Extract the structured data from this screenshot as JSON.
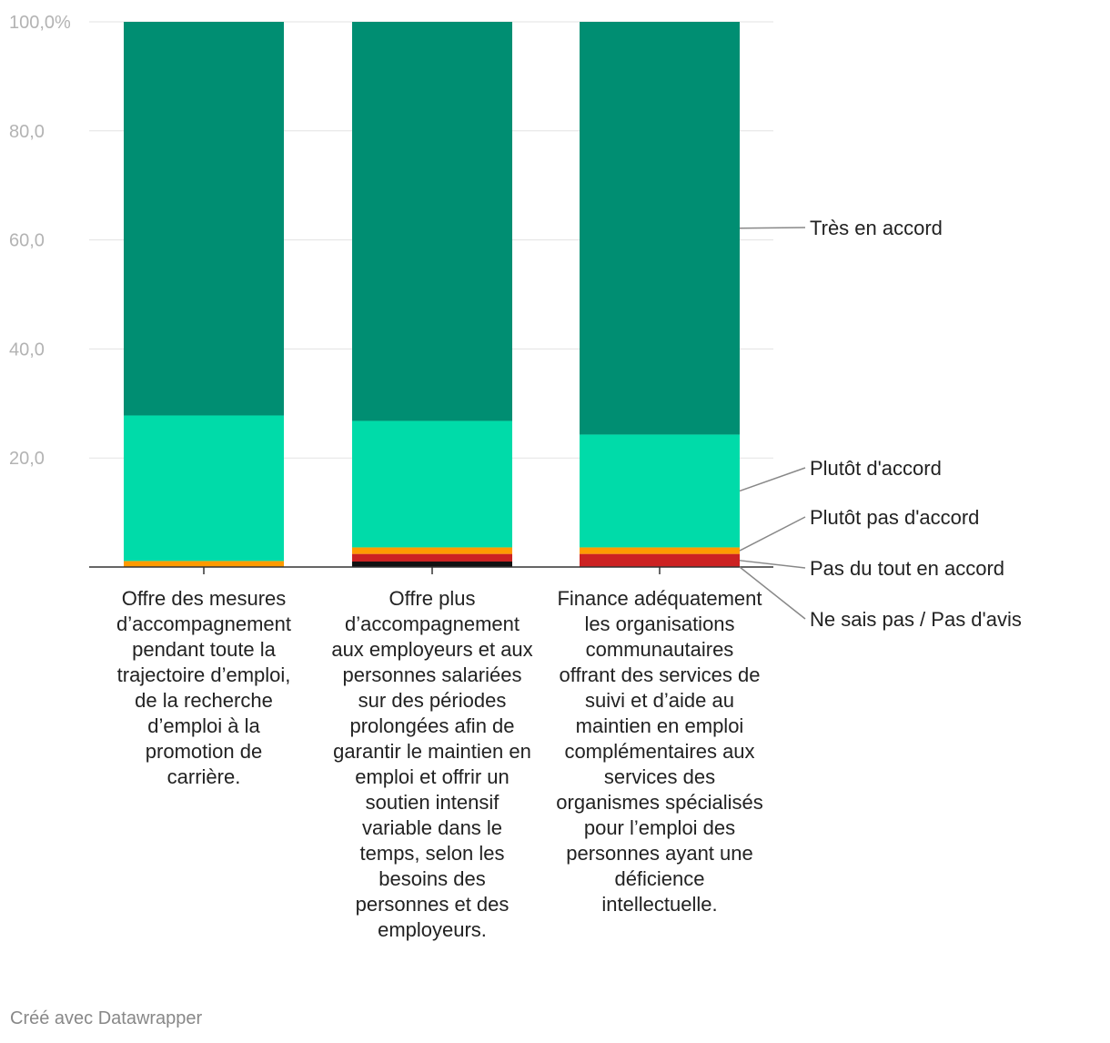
{
  "chart_data": {
    "type": "bar",
    "stacked": true,
    "categories": [
      "Offre des mesures d’accompagnement pendant toute la trajectoire d’emploi, de la recherche d’emploi à la promotion de carrière.",
      "Offre plus d’accompagnement aux employeurs et aux personnes salariées sur des périodes prolongées afin de garantir le maintien en emploi et offrir un soutien intensif variable dans le temps, selon les besoins des personnes et des employeurs.",
      "Finance adéquatement les organisations communautaires offrant des services de suivi et d’aide au maintien en emploi complémentaires aux services des organismes spécialisés pour l’emploi des personnes ayant une déficience intellectuelle."
    ],
    "series": [
      {
        "name": "Ne sais pas / Pas d'avis",
        "color": "#111111",
        "values": [
          0.0,
          1.0,
          0.0
        ]
      },
      {
        "name": "Pas du tout en accord",
        "color": "#cc2222",
        "values": [
          0.0,
          1.4,
          2.4
        ]
      },
      {
        "name": "Plutôt pas d'accord",
        "color": "#ff9a00",
        "values": [
          1.1,
          1.2,
          1.2
        ]
      },
      {
        "name": "Plutôt d'accord",
        "color": "#00dba9",
        "values": [
          26.7,
          23.2,
          20.7
        ]
      },
      {
        "name": "Très en accord",
        "color": "#008e72",
        "values": [
          72.2,
          73.2,
          75.7
        ]
      }
    ],
    "yticks": [
      "100,0%",
      "80,0",
      "60,0",
      "40,0",
      "20,0"
    ],
    "ytick_values": [
      100,
      80,
      60,
      40,
      20
    ],
    "ylim": [
      0,
      100
    ],
    "title": "",
    "xlabel": "",
    "ylabel": ""
  },
  "credit": "Créé avec Datawrapper"
}
